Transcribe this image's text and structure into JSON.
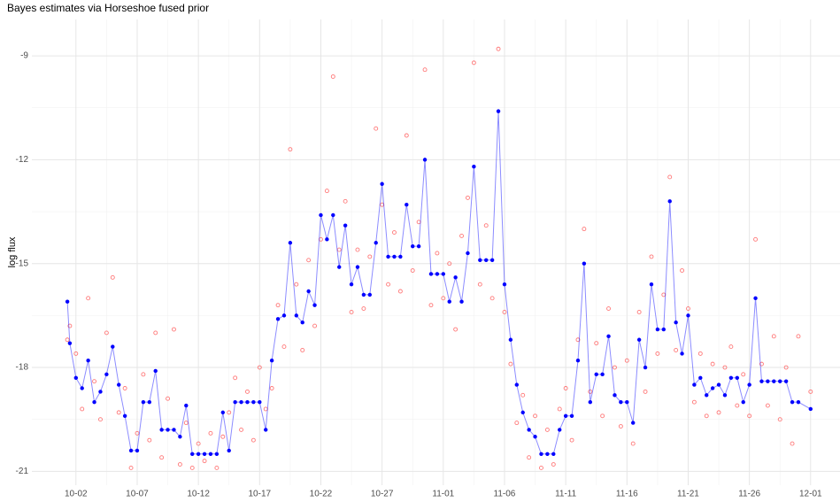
{
  "chart_data": {
    "type": "scatter",
    "title": "Bayes estimates via Horseshoe fused prior",
    "y_label": "log flux",
    "x": [
      1.3,
      1.5,
      2,
      2.5,
      3,
      3.5,
      4,
      4.5,
      5,
      5.5,
      6,
      6.5,
      7,
      7.5,
      8,
      8.5,
      9,
      9.5,
      10,
      10.5,
      11,
      11.5,
      12,
      12.5,
      13,
      13.5,
      14,
      14.5,
      15,
      15.5,
      16,
      16.5,
      17,
      17.5,
      18,
      18.5,
      19,
      19.5,
      20,
      20.5,
      21,
      21.5,
      22,
      22.5,
      23,
      23.5,
      24,
      24.5,
      25,
      25.5,
      26,
      26.5,
      27,
      27.5,
      28,
      28.5,
      29,
      29.5,
      30,
      30.5,
      31,
      31.5,
      32,
      32.5,
      33,
      33.5,
      34,
      34.5,
      35,
      35.5,
      36,
      36.5,
      37,
      37.5,
      38,
      38.5,
      39,
      39.5,
      40,
      40.5,
      41,
      41.5,
      42,
      42.5,
      43,
      43.5,
      44,
      44.5,
      45,
      45.5,
      46,
      46.5,
      47,
      47.5,
      48,
      48.5,
      49,
      49.5,
      50,
      50.5,
      51,
      51.5,
      52,
      52.5,
      53,
      53.5,
      54,
      54.5,
      55,
      55.5,
      56,
      56.5,
      57,
      57.5,
      58,
      58.5,
      59,
      59.5,
      60,
      60.5,
      61,
      62
    ],
    "series": [
      {
        "style": "points",
        "color": "#ff4040",
        "values": [
          -17.2,
          -16.8,
          -17.6,
          -19.2,
          -16.0,
          -18.4,
          -19.5,
          -17.0,
          -15.4,
          -19.3,
          -18.6,
          -20.9,
          -19.9,
          -18.2,
          -20.1,
          -17.0,
          -20.6,
          -18.9,
          -16.9,
          -20.8,
          -19.6,
          -20.9,
          -20.2,
          -20.7,
          -19.9,
          -20.9,
          -20.0,
          -19.3,
          -18.3,
          -19.8,
          -18.7,
          -20.1,
          -18.0,
          -19.2,
          -18.6,
          -16.2,
          -17.4,
          -11.7,
          -15.6,
          -17.5,
          -14.9,
          -16.8,
          -14.3,
          -12.9,
          -9.6,
          -14.6,
          -13.2,
          -16.4,
          -14.6,
          -16.3,
          -14.8,
          -11.1,
          -13.3,
          -15.6,
          -14.1,
          -15.8,
          -11.3,
          -15.2,
          -13.8,
          -9.4,
          -16.2,
          -14.7,
          -16.0,
          -15.0,
          -16.9,
          -14.2,
          -13.1,
          -9.2,
          -15.6,
          -13.9,
          -16.0,
          -8.8,
          -16.4,
          -17.9,
          -19.6,
          -18.8,
          -20.6,
          -19.4,
          -20.9,
          -19.8,
          -20.8,
          -19.2,
          -18.6,
          -20.1,
          -17.2,
          -14.0,
          -18.7,
          -17.3,
          -19.4,
          -16.3,
          -18.0,
          -19.7,
          -17.8,
          -20.2,
          -16.4,
          -18.7,
          -14.8,
          -17.6,
          -15.9,
          -12.5,
          -17.5,
          -15.2,
          -16.3,
          -19.0,
          -17.6,
          -19.4,
          -17.9,
          -19.3,
          -18.0,
          -17.4,
          -19.1,
          -18.2,
          -19.4,
          -14.3,
          -17.9,
          -19.1,
          -17.1,
          -19.5,
          -18.0,
          -20.2,
          -17.1,
          -18.7
        ]
      },
      {
        "style": "line",
        "color": "#0000ff",
        "values": [
          -16.1,
          -17.3,
          -18.3,
          -18.6,
          -17.8,
          -19.0,
          -18.7,
          -18.2,
          -17.4,
          -18.5,
          -19.4,
          -20.4,
          -20.4,
          -19.0,
          -19.0,
          -18.1,
          -19.8,
          -19.8,
          -19.8,
          -20.0,
          -19.1,
          -20.5,
          -20.5,
          -20.5,
          -20.5,
          -20.5,
          -19.3,
          -20.4,
          -19.0,
          -19.0,
          -19.0,
          -19.0,
          -19.0,
          -19.8,
          -17.8,
          -16.6,
          -16.5,
          -14.4,
          -16.5,
          -16.7,
          -15.8,
          -16.2,
          -13.6,
          -14.3,
          -13.6,
          -15.1,
          -13.9,
          -15.6,
          -15.1,
          -15.9,
          -15.9,
          -14.4,
          -12.7,
          -14.8,
          -14.8,
          -14.8,
          -13.3,
          -14.5,
          -14.5,
          -12.0,
          -15.3,
          -15.3,
          -15.3,
          -16.1,
          -15.4,
          -16.1,
          -14.7,
          -12.2,
          -14.9,
          -14.9,
          -14.9,
          -10.6,
          -15.6,
          -17.2,
          -18.5,
          -19.3,
          -19.8,
          -20.0,
          -20.5,
          -20.5,
          -20.5,
          -19.8,
          -19.4,
          -19.4,
          -17.8,
          -15.0,
          -19.0,
          -18.2,
          -18.2,
          -17.1,
          -18.8,
          -19.0,
          -19.0,
          -19.6,
          -17.2,
          -18.0,
          -15.6,
          -16.9,
          -16.9,
          -13.2,
          -16.7,
          -17.6,
          -16.5,
          -18.5,
          -18.3,
          -18.8,
          -18.6,
          -18.5,
          -18.8,
          -18.3,
          -18.3,
          -19.0,
          -18.5,
          -16.0,
          -18.4,
          -18.4,
          -18.4,
          -18.4,
          -18.4,
          -19.0,
          -19.0,
          -19.2
        ]
      }
    ],
    "xlim": [
      -1.6,
      64.4
    ],
    "xticks": [
      {
        "value": 2,
        "label": "10-02"
      },
      {
        "value": 7,
        "label": "10-07"
      },
      {
        "value": 12,
        "label": "10-12"
      },
      {
        "value": 17,
        "label": "10-17"
      },
      {
        "value": 22,
        "label": "10-22"
      },
      {
        "value": 27,
        "label": "10-27"
      },
      {
        "value": 32,
        "label": "11-01"
      },
      {
        "value": 37,
        "label": "11-06"
      },
      {
        "value": 42,
        "label": "11-11"
      },
      {
        "value": 47,
        "label": "11-16"
      },
      {
        "value": 52,
        "label": "11-21"
      },
      {
        "value": 57,
        "label": "11-26"
      },
      {
        "value": 62,
        "label": "12-01"
      }
    ],
    "ylim": [
      -21.4,
      -7.95
    ],
    "yticks": [
      -21,
      -18,
      -15,
      -12,
      -9
    ],
    "grid": true,
    "minor_grid": true
  }
}
